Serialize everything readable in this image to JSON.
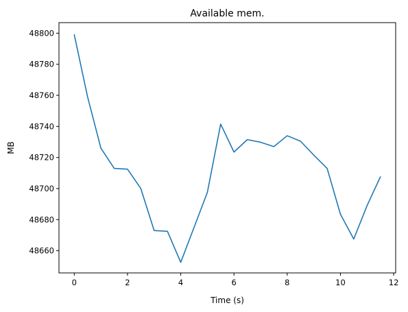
{
  "chart_data": {
    "type": "line",
    "title": "Available mem.",
    "xlabel": "Time (s)",
    "ylabel": "MB",
    "xlim": [
      -0.575,
      12.075
    ],
    "ylim": [
      48645.7,
      48806.8
    ],
    "xticks": [
      0,
      2,
      4,
      6,
      8,
      10,
      12
    ],
    "yticks": [
      48660,
      48680,
      48700,
      48720,
      48740,
      48760,
      48780,
      48800
    ],
    "grid": false,
    "series": [
      {
        "color": "#1f77b4",
        "x": [
          0,
          0.5,
          1,
          1.5,
          2,
          2.5,
          3,
          3.5,
          4,
          4.5,
          5,
          5.5,
          6,
          6.5,
          7,
          7.5,
          8,
          8.5,
          9,
          9.5,
          10,
          10.5,
          11,
          11.5
        ],
        "y": [
          48799,
          48759,
          48726,
          48713,
          48712.5,
          48700,
          48673,
          48672.5,
          48652.5,
          48675,
          48697.5,
          48741.5,
          48723.5,
          48731.5,
          48729.8,
          48727,
          48734,
          48730.5,
          48721.5,
          48713,
          48683.5,
          48667.5,
          48689,
          48707.5
        ]
      }
    ]
  }
}
